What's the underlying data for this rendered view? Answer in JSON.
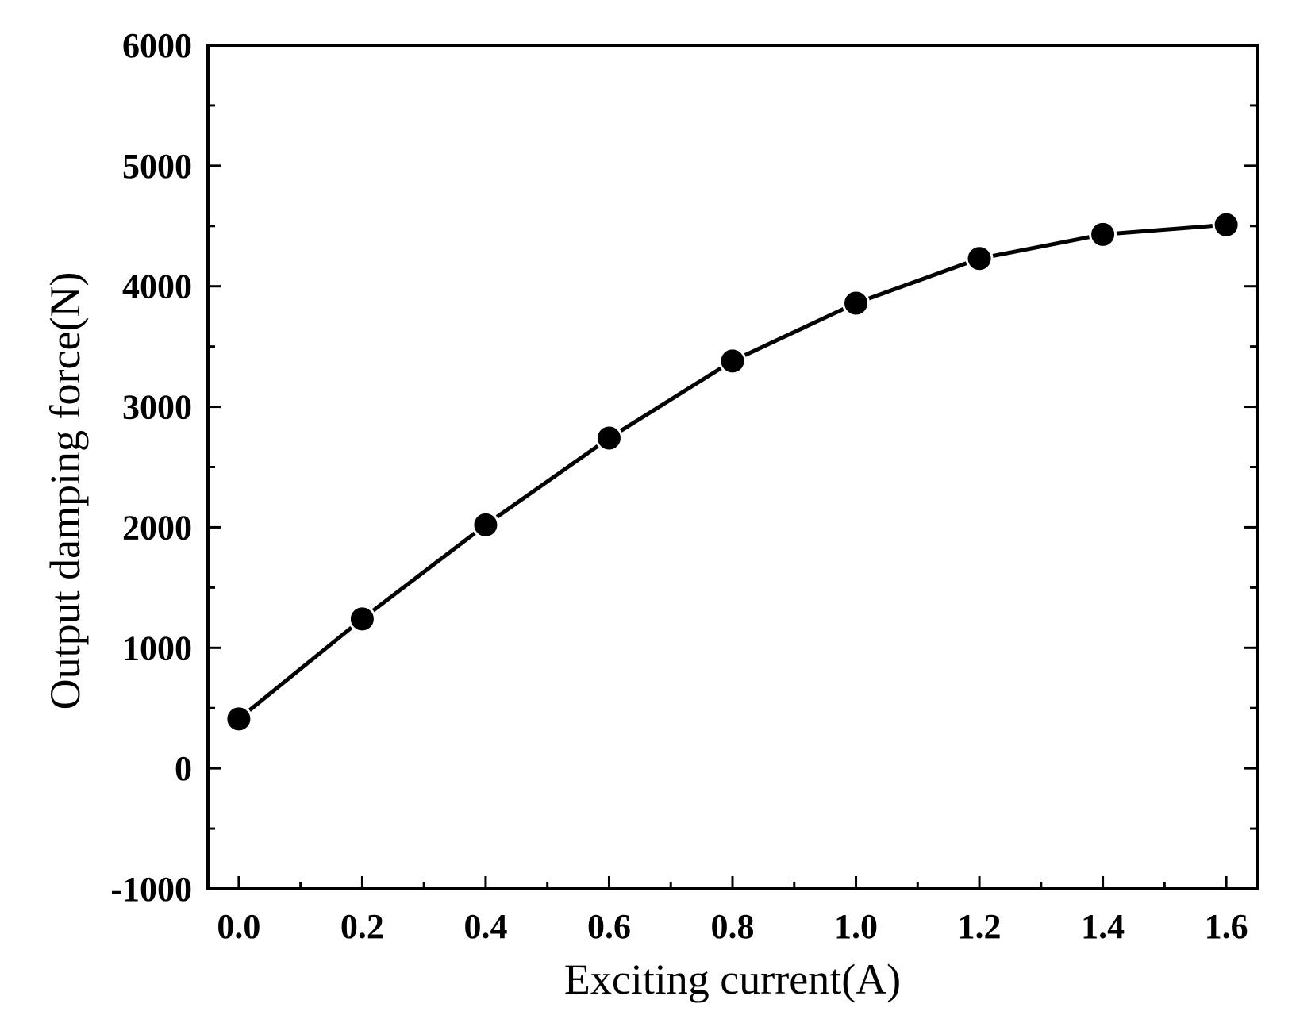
{
  "chart_data": {
    "type": "line",
    "title": "",
    "xlabel": "Exciting current(A)",
    "ylabel": "Output damping force(N)",
    "xlim": [
      -0.05,
      1.65
    ],
    "ylim": [
      -1000,
      6000
    ],
    "x_ticks": [
      0.0,
      0.2,
      0.4,
      0.6,
      0.8,
      1.0,
      1.2,
      1.4,
      1.6
    ],
    "x_tick_labels": [
      "0.0",
      "0.2",
      "0.4",
      "0.6",
      "0.8",
      "1.0",
      "1.2",
      "1.4",
      "1.6"
    ],
    "x_minor_ticks": [
      0.1,
      0.3,
      0.5,
      0.7,
      0.9,
      1.1,
      1.3,
      1.5
    ],
    "y_ticks": [
      -1000,
      0,
      1000,
      2000,
      3000,
      4000,
      5000,
      6000
    ],
    "y_tick_labels": [
      "-1000",
      "0",
      "1000",
      "2000",
      "3000",
      "4000",
      "5000",
      "6000"
    ],
    "y_minor_ticks": [
      -500,
      500,
      1500,
      2500,
      3500,
      4500,
      5500
    ],
    "grid": false,
    "legend": "none",
    "marker": "filled-circle",
    "line_color": "#000000",
    "series": [
      {
        "x": [
          0.0,
          0.2,
          0.4,
          0.6,
          0.8,
          1.0,
          1.2,
          1.4,
          1.6
        ],
        "y": [
          410,
          1240,
          2020,
          2740,
          3380,
          3860,
          4230,
          4430,
          4510
        ]
      }
    ]
  }
}
